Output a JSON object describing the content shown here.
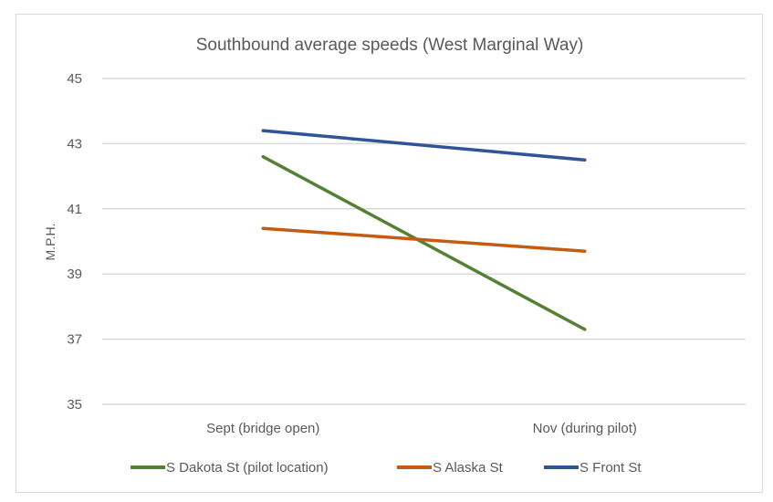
{
  "chart_data": {
    "type": "line",
    "title": "Southbound average speeds (West Marginal Way)",
    "xlabel": "",
    "ylabel": "M.P.H.",
    "categories": [
      "Sept (bridge open)",
      "Nov (during pilot)"
    ],
    "ylim": [
      35,
      45
    ],
    "yticks": [
      35,
      37,
      39,
      41,
      43,
      45
    ],
    "grid": true,
    "legend": "bottom",
    "series": [
      {
        "name": "S Dakota St (pilot location)",
        "values": [
          42.6,
          37.3
        ],
        "color": "#548235"
      },
      {
        "name": "S Alaska St",
        "values": [
          40.4,
          39.7
        ],
        "color": "#c55a11"
      },
      {
        "name": "S Front St",
        "values": [
          43.4,
          42.5
        ],
        "color": "#2f5597"
      }
    ]
  }
}
